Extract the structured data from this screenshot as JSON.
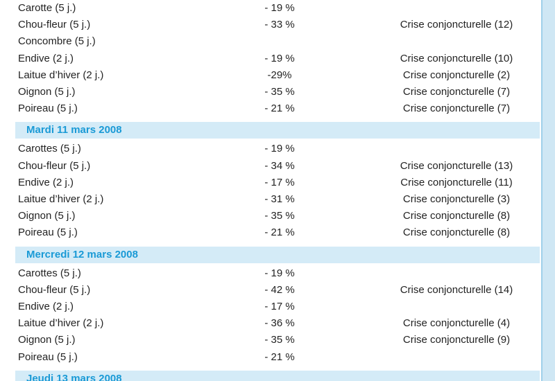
{
  "groups": [
    {
      "rows": [
        {
          "product": "Carotte (5 j.)",
          "change": "- 19 %"
        },
        {
          "product": "Chou-fleur (5 j.)",
          "change": "- 33 %",
          "status": "Crise conjoncturelle (12)"
        },
        {
          "product": "Concombre (5 j.)"
        },
        {
          "product": "Endive (2 j.)",
          "change": "- 19 %",
          "status": "Crise conjoncturelle (10)"
        },
        {
          "product": "Laitue d’hiver (2 j.)",
          "change": "-29%",
          "status": "Crise conjoncturelle (2)"
        },
        {
          "product": "Oignon (5 j.)",
          "change": "- 35 %",
          "status": "Crise conjoncturelle (7)"
        },
        {
          "product": "Poireau (5 j.)",
          "change": "- 21 %",
          "status": "Crise conjoncturelle (7)"
        }
      ]
    },
    {
      "date": "Mardi 11 mars 2008",
      "rows": [
        {
          "product": "Carottes (5 j.)",
          "change": "- 19 %"
        },
        {
          "product": "Chou-fleur (5 j.)",
          "change": "- 34 %",
          "status": "Crise conjoncturelle (13)"
        },
        {
          "product": "Endive (2 j.)",
          "change": "- 17 %",
          "status": "Crise conjoncturelle (11)"
        },
        {
          "product": "Laitue d’hiver (2 j.)",
          "change": "- 31 %",
          "status": "Crise conjoncturelle (3)"
        },
        {
          "product": "Oignon (5 j.)",
          "change": "- 35 %",
          "status": "Crise conjoncturelle (8)"
        },
        {
          "product": "Poireau (5 j.)",
          "change": "- 21 %",
          "status": "Crise conjoncturelle (8)"
        }
      ]
    },
    {
      "date": "Mercredi 12 mars 2008",
      "rows": [
        {
          "product": "Carottes (5 j.)",
          "change": "- 19 %"
        },
        {
          "product": "Chou-fleur (5 j.)",
          "change": "- 42 %",
          "status": "Crise conjoncturelle (14)"
        },
        {
          "product": "Endive (2 j.)",
          "change": "- 17 %"
        },
        {
          "product": "Laitue d’hiver (2 j.)",
          "change": "- 36 %",
          "status": "Crise conjoncturelle (4)"
        },
        {
          "product": "Oignon (5 j.)",
          "change": "- 35 %",
          "status": "Crise conjoncturelle (9)"
        },
        {
          "product": "Poireau (5 j.)",
          "change": "- 21 %"
        }
      ]
    },
    {
      "date": "Jeudi 13 mars 2008"
    }
  ]
}
